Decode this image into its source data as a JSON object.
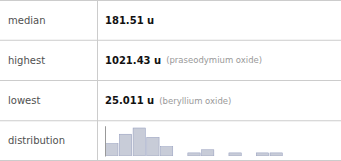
{
  "chart_data": {
    "type": "bar",
    "annotations": [
      [
        "median",
        "181.51 u"
      ],
      [
        "highest",
        "1021.43 u",
        "(praseodymium oxide)"
      ],
      [
        "lowest",
        "25.011 u",
        "(beryllium oxide)"
      ],
      [
        "distribution"
      ]
    ],
    "categories": [
      null,
      null,
      null,
      null,
      null,
      null,
      null,
      null,
      null,
      null,
      null,
      null,
      null
    ],
    "values": [
      4,
      7,
      9,
      6,
      3,
      0,
      1,
      2,
      0,
      1,
      0,
      1,
      1
    ],
    "color": "#c8ccd8",
    "ylim": [
      0,
      9.72
    ],
    "tick_labels": false
  }
}
